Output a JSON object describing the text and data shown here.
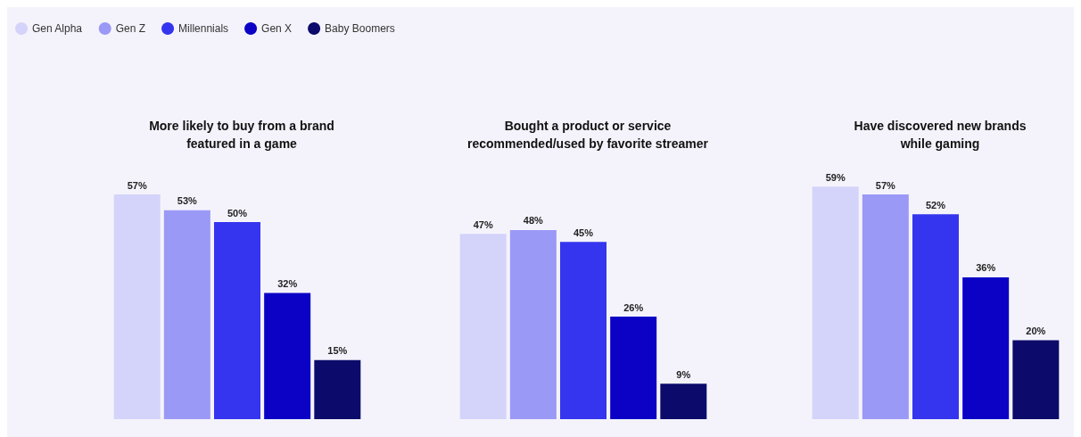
{
  "chart_data": [
    {
      "type": "bar",
      "title": "More likely to buy from a brand\nfeatured in a game",
      "categories": [
        null
      ],
      "legend": "top left",
      "series": [
        {
          "name": "Gen Alpha",
          "color": "#d4d3fa",
          "values": [
            57
          ],
          "value_labels": [
            "57%"
          ]
        },
        {
          "name": "Gen Z",
          "color": "#9b99f6",
          "values": [
            53
          ],
          "value_labels": [
            "53%"
          ]
        },
        {
          "name": "Millennials",
          "color": "#3535ef",
          "values": [
            50
          ],
          "value_labels": [
            "50%"
          ]
        },
        {
          "name": "Gen X",
          "color": "#0b02c6",
          "values": [
            32
          ],
          "value_labels": [
            "32%"
          ]
        },
        {
          "name": "Baby Boomers",
          "color": "#0c0b6b",
          "values": [
            15
          ],
          "value_labels": [
            "15%"
          ]
        }
      ]
    },
    {
      "type": "bar",
      "title": "Bought a product or service\nrecommended/used by favorite streamer",
      "categories": [
        null
      ],
      "series": [
        {
          "color": "#d4d3fa",
          "values": [
            47
          ],
          "value_labels": [
            "47%"
          ]
        },
        {
          "color": "#9b99f6",
          "values": [
            48
          ],
          "value_labels": [
            "48%"
          ]
        },
        {
          "color": "#3535ef",
          "values": [
            45
          ],
          "value_labels": [
            "45%"
          ]
        },
        {
          "color": "#0b02c6",
          "values": [
            26
          ],
          "value_labels": [
            "26%"
          ]
        },
        {
          "color": "#0c0b6b",
          "values": [
            9
          ],
          "value_labels": [
            "9%"
          ]
        }
      ]
    },
    {
      "type": "bar",
      "title": "Have discovered new brands\nwhile gaming",
      "categories": [
        null
      ],
      "series": [
        {
          "color": "#d4d3fa",
          "values": [
            59
          ],
          "value_labels": [
            "59%"
          ]
        },
        {
          "color": "#9b99f6",
          "values": [
            57
          ],
          "value_labels": [
            "57%"
          ]
        },
        {
          "color": "#3535ef",
          "values": [
            52
          ],
          "value_labels": [
            "52%"
          ]
        },
        {
          "color": "#0b02c6",
          "values": [
            36
          ],
          "value_labels": [
            "36%"
          ]
        },
        {
          "color": "#0c0b6b",
          "values": [
            20
          ],
          "value_labels": [
            "20%"
          ]
        }
      ]
    }
  ]
}
